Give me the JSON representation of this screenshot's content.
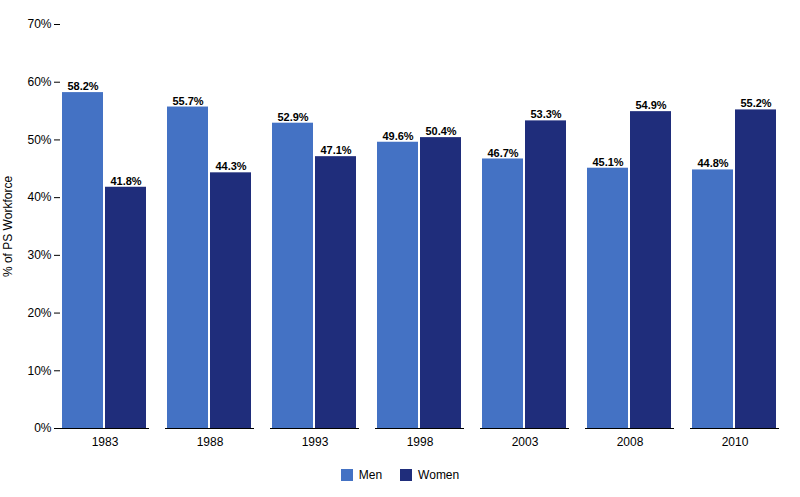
{
  "chart_data": {
    "type": "bar",
    "ylabel": "% of PS Workforce",
    "categories": [
      "1983",
      "1988",
      "1993",
      "1998",
      "2003",
      "2008",
      "2010"
    ],
    "series": [
      {
        "name": "Men",
        "color": "#4472C4",
        "values": [
          58.2,
          55.7,
          52.9,
          49.6,
          46.7,
          45.1,
          44.8
        ],
        "value_labels": [
          "58.2%",
          "55.7%",
          "52.9%",
          "49.6%",
          "46.7%",
          "45.1%",
          "44.8%"
        ]
      },
      {
        "name": "Women",
        "color": "#1F2D7B",
        "values": [
          41.8,
          44.3,
          47.1,
          50.4,
          53.3,
          54.9,
          55.2
        ],
        "value_labels": [
          "41.8%",
          "44.3%",
          "47.1%",
          "50.4%",
          "53.3%",
          "54.9%",
          "55.2%"
        ]
      }
    ],
    "ylim": [
      0,
      70
    ],
    "yticks": [
      {
        "value": 0,
        "label": "0%"
      },
      {
        "value": 10,
        "label": "10%"
      },
      {
        "value": 20,
        "label": "20%"
      },
      {
        "value": 30,
        "label": "30%"
      },
      {
        "value": 40,
        "label": "40%"
      },
      {
        "value": 50,
        "label": "50%"
      },
      {
        "value": 60,
        "label": "60%"
      },
      {
        "value": 70,
        "label": "70%"
      }
    ],
    "grid": false,
    "legend": "bottom",
    "data_labels": true
  }
}
